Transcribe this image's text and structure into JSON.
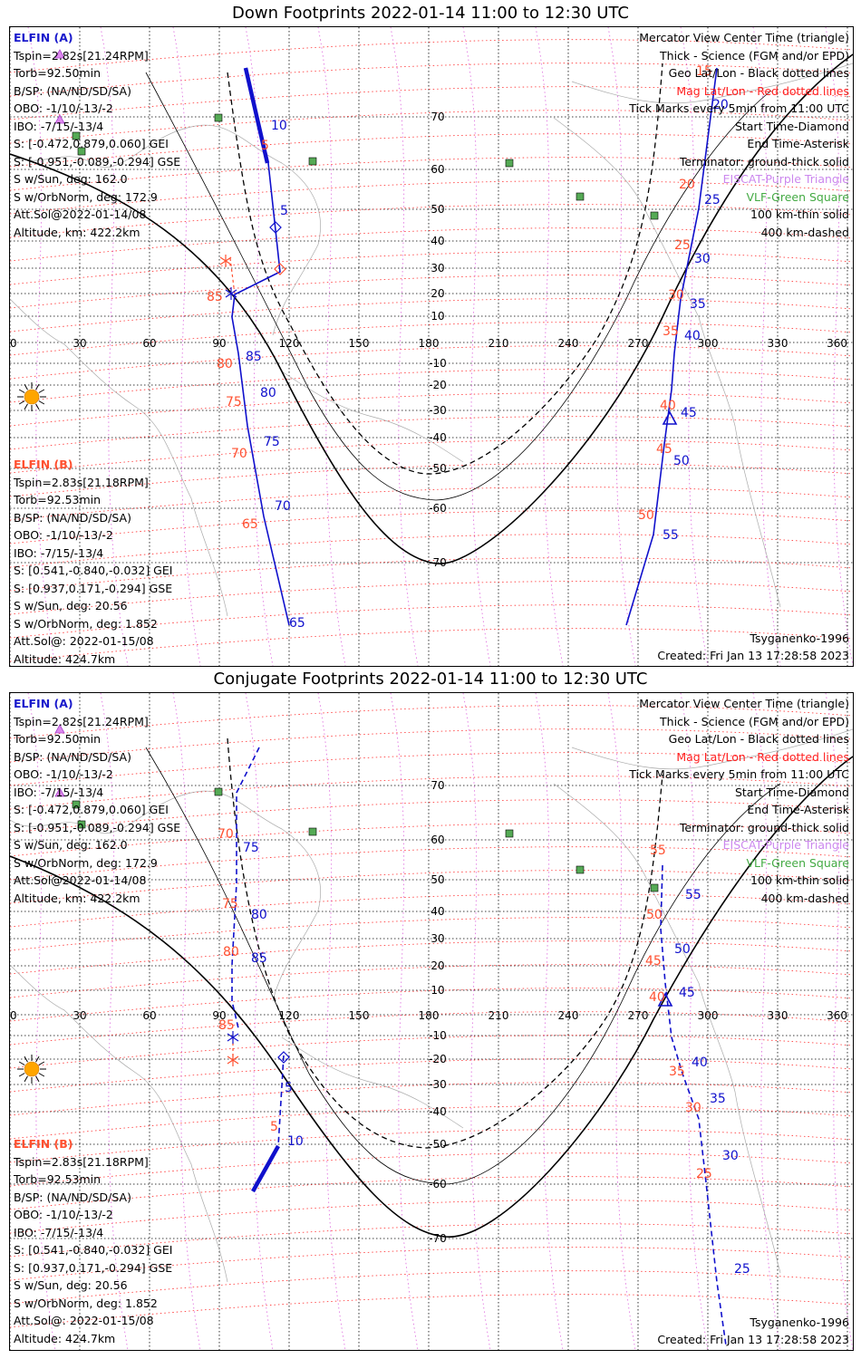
{
  "panels": [
    {
      "title": "Down Footprints 2022-01-14 11:00 to 12:30 UTC",
      "elfin_a": {
        "header": "ELFIN (A)",
        "lines": [
          "Tspin=2.82s[21.24RPM]",
          "Torb=92.50min",
          "B/SP: (NA/ND/SD/SA)",
          "OBO: -1/10/-13/-2",
          "IBO: -7/15/-13/4",
          "S: [-0.472,0.879,0.060] GEI",
          "S: [-0.951,-0.089,-0.294] GSE",
          "S w/Sun, deg: 162.0",
          "S w/OrbNorm, deg: 172.9",
          "Att.Sol@2022-01-14/08",
          "Altitude, km: 422.2km"
        ]
      },
      "elfin_b": {
        "header": "ELFIN (B)",
        "lines": [
          "Tspin=2.83s[21.18RPM]",
          "Torb=92.53min",
          "B/SP: (NA/ND/SD/SA)",
          "OBO: -1/10/-13/-2",
          "IBO: -7/15/-13/4",
          "S: [0.541,-0.840,-0.032] GEI",
          "S: [0.937,0.171,-0.294] GSE",
          "S w/Sun, deg: 20.56",
          "S w/OrbNorm, deg: 1.852",
          "Att.Sol@: 2022-01-15/08",
          "Altitude: 424.7km"
        ]
      },
      "model": "Tsyganenko-1996",
      "created": "Created: Fri Jan 13 17:28:58 2023"
    },
    {
      "title": "Conjugate Footprints 2022-01-14 11:00 to 12:30 UTC",
      "elfin_a": {
        "header": "ELFIN (A)",
        "lines": [
          "Tspin=2.82s[21.24RPM]",
          "Torb=92.50min",
          "B/SP: (NA/ND/SD/SA)",
          "OBO: -1/10/-13/-2",
          "IBO: -7/15/-13/4",
          "S: [-0.472,0.879,0.060] GEI",
          "S: [-0.951,-0.089,-0.294] GSE",
          "S w/Sun, deg: 162.0",
          "S w/OrbNorm, deg: 172.9",
          "Att.Sol@2022-01-14/08",
          "Altitude, km: 422.2km"
        ]
      },
      "elfin_b": {
        "header": "ELFIN (B)",
        "lines": [
          "Tspin=2.83s[21.18RPM]",
          "Torb=92.53min",
          "B/SP: (NA/ND/SD/SA)",
          "OBO: -1/10/-13/-2",
          "IBO: -7/15/-13/4",
          "S: [0.541,-0.840,-0.032] GEI",
          "S: [0.937,0.171,-0.294] GSE",
          "S w/Sun, deg: 20.56",
          "S w/OrbNorm, deg: 1.852",
          "Att.Sol@: 2022-01-15/08",
          "Altitude: 424.7km"
        ]
      },
      "model": "Tsyganenko-1996",
      "created": "Created: Fri Jan 13 17:28:58 2023"
    }
  ],
  "legend": [
    {
      "text": "Mercator View Center Time (triangle)",
      "color": "#000000"
    },
    {
      "text": "Thick - Science (FGM and/or EPD)",
      "color": "#000000"
    },
    {
      "text": "Geo Lat/Lon - Black dotted lines",
      "color": "#000000"
    },
    {
      "text": "Mag Lat/Lon - Red dotted lines",
      "color": "#ff2020"
    },
    {
      "text": "Tick Marks every 5min from 11:00 UTC",
      "color": "#000000"
    },
    {
      "text": "Start Time-Diamond",
      "color": "#000000"
    },
    {
      "text": "End Time-Asterisk",
      "color": "#000000"
    },
    {
      "text": "Terminator: ground-thick solid",
      "color": "#000000"
    },
    {
      "text": "EISCAT-Purple Triangle",
      "color": "#cc88ee"
    },
    {
      "text": "VLF-Green Square",
      "color": "#44aa44"
    },
    {
      "text": "100 km-thin solid",
      "color": "#000000"
    },
    {
      "text": "400 km-dashed",
      "color": "#000000"
    }
  ],
  "map": {
    "lon_ticks": [
      "0",
      "30",
      "60",
      "90",
      "120",
      "150",
      "180",
      "210",
      "240",
      "270",
      "300",
      "330",
      "360"
    ],
    "lat_ticks": [
      "70",
      "60",
      "50",
      "40",
      "30",
      "20",
      "10",
      "-10",
      "-20",
      "-30",
      "-40",
      "-50",
      "-60",
      "-70"
    ],
    "colors": {
      "track": "#1010cc",
      "mag": "#ff5030",
      "terminator": "#000000",
      "vlf": "#55aa55",
      "sun": "#ffa500"
    }
  },
  "down_labels": {
    "blue": [
      "20",
      "25",
      "30",
      "35",
      "40",
      "45",
      "50",
      "55",
      "10",
      "5",
      "85",
      "80",
      "75",
      "70",
      "65"
    ],
    "red": [
      "15",
      "20",
      "25",
      "30",
      "35",
      "40",
      "45",
      "50",
      "5",
      "85",
      "80",
      "75",
      "70",
      "65"
    ]
  },
  "conj_labels": {
    "blue": [
      "75",
      "80",
      "85",
      "5",
      "10",
      "45",
      "50",
      "55",
      "40",
      "35",
      "30",
      "25"
    ],
    "red": [
      "70",
      "75",
      "80",
      "85",
      "5",
      "55",
      "50",
      "45",
      "40",
      "35",
      "30",
      "25"
    ]
  }
}
